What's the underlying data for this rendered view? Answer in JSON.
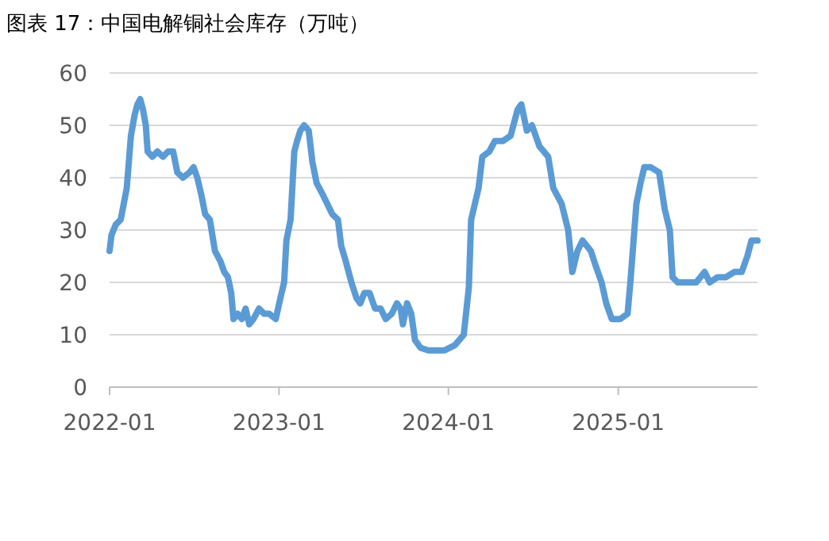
{
  "chart_data": {
    "type": "line",
    "title": "图表 17：中国电解铜社会库存（万吨）",
    "x": [
      "2022-01-01",
      "2022-01-05",
      "2022-01-14",
      "2022-01-25",
      "2022-02-07",
      "2022-02-16",
      "2022-02-24",
      "2022-03-02",
      "2022-03-08",
      "2022-03-14",
      "2022-03-20",
      "2022-03-24",
      "2022-04-03",
      "2022-04-14",
      "2022-04-26",
      "2022-05-07",
      "2022-05-18",
      "2022-05-27",
      "2022-06-08",
      "2022-06-22",
      "2022-07-01",
      "2022-07-09",
      "2022-07-17",
      "2022-07-26",
      "2022-08-05",
      "2022-08-16",
      "2022-08-28",
      "2022-09-05",
      "2022-09-13",
      "2022-09-20",
      "2022-09-25",
      "2022-10-04",
      "2022-10-13",
      "2022-10-21",
      "2022-10-29",
      "2022-11-07",
      "2022-11-19",
      "2022-11-30",
      "2022-12-11",
      "2022-12-25",
      "2023-01-04",
      "2023-01-12",
      "2023-01-17",
      "2023-01-26",
      "2023-02-03",
      "2023-02-09",
      "2023-02-16",
      "2023-02-24",
      "2023-03-06",
      "2023-03-14",
      "2023-03-23",
      "2023-04-04",
      "2023-04-15",
      "2023-04-26",
      "2023-05-08",
      "2023-05-15",
      "2023-05-25",
      "2023-06-06",
      "2023-06-17",
      "2023-06-25",
      "2023-07-04",
      "2023-07-15",
      "2023-07-27",
      "2023-08-08",
      "2023-08-19",
      "2023-09-01",
      "2023-09-12",
      "2023-09-20",
      "2023-09-25",
      "2023-10-04",
      "2023-10-13",
      "2023-10-21",
      "2023-11-02",
      "2023-11-19",
      "2023-12-06",
      "2023-12-23",
      "2024-01-15",
      "2024-02-03",
      "2024-02-14",
      "2024-02-19",
      "2024-03-06",
      "2024-03-14",
      "2024-03-29",
      "2024-04-10",
      "2024-04-27",
      "2024-05-14",
      "2024-05-29",
      "2024-06-06",
      "2024-06-18",
      "2024-06-29",
      "2024-07-15",
      "2024-08-03",
      "2024-08-14",
      "2024-09-01",
      "2024-09-15",
      "2024-09-24",
      "2024-10-05",
      "2024-10-16",
      "2024-11-03",
      "2024-11-14",
      "2024-11-26",
      "2024-12-06",
      "2024-12-18",
      "2025-01-05",
      "2025-01-21",
      "2025-01-27",
      "2025-02-09",
      "2025-02-18",
      "2025-02-26",
      "2025-03-12",
      "2025-03-30",
      "2025-04-11",
      "2025-04-22",
      "2025-04-28",
      "2025-05-09",
      "2025-05-20",
      "2025-06-02",
      "2025-06-18",
      "2025-07-06",
      "2025-07-17",
      "2025-08-03",
      "2025-08-21",
      "2025-09-08",
      "2025-09-24",
      "2025-10-06",
      "2025-10-15",
      "2025-10-28"
    ],
    "series": [
      {
        "color": "#5b9bd5",
        "values": [
          26,
          29,
          31,
          32,
          38,
          48,
          52,
          54,
          55,
          53,
          50,
          45,
          44,
          45,
          44,
          45,
          45,
          41,
          40,
          41,
          42,
          40,
          37,
          33,
          32,
          26,
          24,
          22,
          21,
          18,
          13,
          14,
          13,
          15,
          12,
          13,
          15,
          14,
          14,
          13,
          17,
          20,
          28,
          32,
          45,
          47,
          49,
          50,
          49,
          43,
          39,
          37,
          35,
          33,
          32,
          27,
          24,
          20,
          17,
          16,
          18,
          18,
          15,
          15,
          13,
          14,
          16,
          15,
          12,
          16,
          14,
          9,
          7.5,
          7,
          7,
          7,
          8,
          10,
          19,
          32,
          38,
          44,
          45,
          47,
          47,
          48,
          53,
          54,
          49,
          50,
          46,
          44,
          38,
          35,
          30,
          22,
          26,
          28,
          26,
          23,
          20,
          16,
          13,
          13,
          14,
          20,
          35,
          39,
          42,
          42,
          41,
          34,
          30,
          21,
          20,
          20,
          20,
          20,
          22,
          20,
          21,
          21,
          22,
          22,
          25,
          28,
          28
        ]
      }
    ],
    "xlim": [
      "2022-01-01",
      "2025-10-28"
    ],
    "xticks": [
      "2022-01",
      "2023-01",
      "2024-01",
      "2025-01"
    ],
    "ylim": [
      0,
      60
    ],
    "yticks": [
      0,
      10,
      20,
      30,
      40,
      50,
      60
    ],
    "grid": "y",
    "marker": "none",
    "line_style": "solid"
  }
}
